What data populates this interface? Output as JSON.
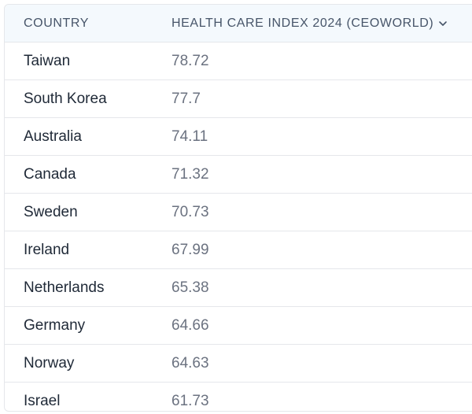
{
  "table": {
    "headers": {
      "country": "COUNTRY",
      "index": "HEALTH CARE INDEX 2024 (CEOWORLD)"
    },
    "sort_icon": "chevron-down-icon",
    "rows": [
      {
        "country": "Taiwan",
        "index": "78.72"
      },
      {
        "country": "South Korea",
        "index": "77.7"
      },
      {
        "country": "Australia",
        "index": "74.11"
      },
      {
        "country": "Canada",
        "index": "71.32"
      },
      {
        "country": "Sweden",
        "index": "70.73"
      },
      {
        "country": "Ireland",
        "index": "67.99"
      },
      {
        "country": "Netherlands",
        "index": "65.38"
      },
      {
        "country": "Germany",
        "index": "64.66"
      },
      {
        "country": "Norway",
        "index": "64.63"
      },
      {
        "country": "Israel",
        "index": "61.73"
      }
    ]
  }
}
